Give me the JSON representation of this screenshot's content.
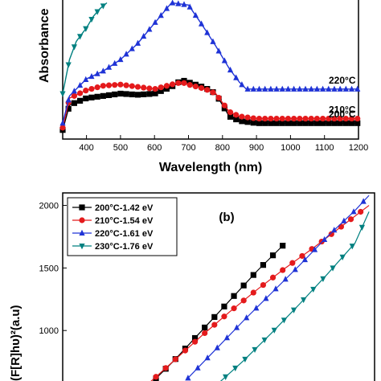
{
  "chart_data": [
    {
      "panel": "a",
      "type": "line",
      "xlabel": "Wavelength (nm)",
      "ylabel": "Absorbance",
      "xlim": [
        330,
        1200
      ],
      "xticks": [
        "400",
        "500",
        "600",
        "700",
        "800",
        "900",
        "1000",
        "1100",
        "1200"
      ],
      "series": [
        {
          "name": "200°C",
          "color": "#000000",
          "marker": "square",
          "label_at": 860,
          "x": [
            330,
            350,
            400,
            450,
            500,
            550,
            600,
            650,
            680,
            700,
            750,
            780,
            800,
            820,
            850,
            900,
            1000,
            1100,
            1200
          ],
          "y": [
            0.08,
            0.3,
            0.36,
            0.38,
            0.4,
            0.39,
            0.4,
            0.46,
            0.52,
            0.5,
            0.45,
            0.4,
            0.3,
            0.2,
            0.16,
            0.14,
            0.14,
            0.14,
            0.14
          ]
        },
        {
          "name": "210°C",
          "color": "#e41a1c",
          "marker": "circle",
          "label_at": 860,
          "x": [
            330,
            350,
            400,
            450,
            500,
            550,
            600,
            650,
            680,
            700,
            750,
            780,
            800,
            820,
            850,
            900,
            1000,
            1100,
            1200
          ],
          "y": [
            0.1,
            0.36,
            0.43,
            0.47,
            0.48,
            0.46,
            0.44,
            0.48,
            0.5,
            0.48,
            0.44,
            0.4,
            0.32,
            0.24,
            0.2,
            0.18,
            0.18,
            0.18,
            0.18
          ]
        },
        {
          "name": "220°C",
          "color": "#1f33d6",
          "marker": "triangle",
          "label_at": 860,
          "x": [
            330,
            350,
            400,
            450,
            500,
            550,
            600,
            650,
            700,
            730,
            750,
            780,
            800,
            820,
            850,
            870,
            900,
            1000,
            1100,
            1200
          ],
          "y": [
            0.14,
            0.38,
            0.53,
            0.6,
            0.7,
            0.84,
            1.02,
            1.2,
            1.18,
            1.05,
            0.96,
            0.82,
            0.72,
            0.62,
            0.5,
            0.44,
            0.44,
            0.44,
            0.44,
            0.44
          ]
        },
        {
          "name": "230°C",
          "color": "#008080",
          "marker": "triangle-down",
          "label_at": null,
          "x": [
            330,
            350,
            370,
            400,
            420,
            440,
            460
          ],
          "y": [
            0.4,
            0.7,
            0.86,
            0.98,
            1.08,
            1.15,
            1.2
          ]
        }
      ]
    },
    {
      "panel": "b",
      "type": "line",
      "tag": "(b)",
      "ylabel": "(F[R]hυ)²(a.u)",
      "ylim": [
        500,
        2100
      ],
      "yticks": [
        "1000",
        "1500",
        "2000"
      ],
      "series": [
        {
          "name": "200°C-1.42 eV",
          "color": "#000000",
          "marker": "square",
          "x": [
            1.3,
            1.4,
            1.5,
            1.6,
            1.7,
            1.8
          ],
          "y": [
            540,
            760,
            1000,
            1240,
            1480,
            1700
          ]
        },
        {
          "name": "210°C-1.54 eV",
          "color": "#e41a1c",
          "marker": "circle",
          "x": [
            1.3,
            1.4,
            1.5,
            1.6,
            1.7,
            1.8,
            1.9,
            2.0,
            2.1
          ],
          "y": [
            560,
            760,
            960,
            1150,
            1330,
            1500,
            1660,
            1830,
            2000
          ]
        },
        {
          "name": "220°C-1.61 eV",
          "color": "#1f33d6",
          "marker": "triangle",
          "x": [
            1.45,
            1.55,
            1.65,
            1.75,
            1.85,
            1.95,
            2.05,
            2.1
          ],
          "y": [
            620,
            850,
            1080,
            1300,
            1520,
            1750,
            1960,
            2080
          ]
        },
        {
          "name": "230°C-1.76 eV",
          "color": "#008080",
          "marker": "triangle-down",
          "x": [
            1.55,
            1.65,
            1.75,
            1.85,
            1.95,
            2.05,
            2.1
          ],
          "y": [
            560,
            760,
            980,
            1210,
            1450,
            1700,
            1950
          ]
        }
      ]
    }
  ]
}
